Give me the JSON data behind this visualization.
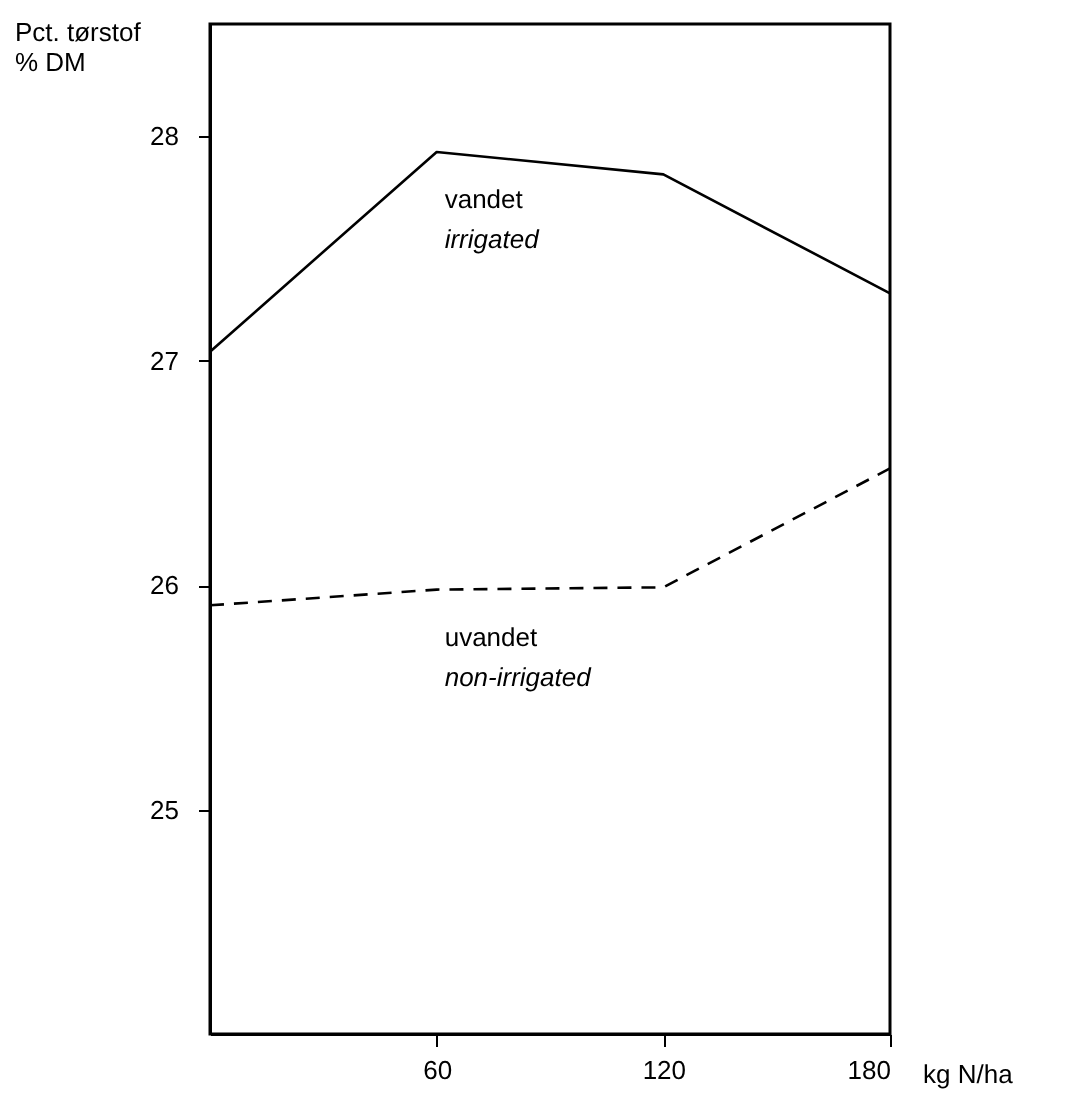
{
  "chart_data": {
    "type": "line",
    "xlabel": "kg N/ha",
    "ylabel": "Pct. tørstof\n% DM",
    "x": [
      0,
      60,
      120,
      180
    ],
    "series": [
      {
        "name": "vandet\nirrigated",
        "color": "#000000",
        "line_style": "solid",
        "values": [
          27.04,
          27.93,
          27.83,
          27.3
        ]
      },
      {
        "name": "uvandet\nnon-irrigated",
        "color": "#000000",
        "line_style": "dashed",
        "values": [
          25.91,
          25.98,
          25.99,
          26.52
        ]
      }
    ],
    "xlim": [
      0,
      180
    ],
    "xticks": [
      60,
      120,
      180
    ],
    "ylim": [
      24,
      28.5
    ],
    "yticks": [
      25,
      26,
      27,
      28
    ],
    "grid": false,
    "legend": false,
    "marker": "none"
  }
}
